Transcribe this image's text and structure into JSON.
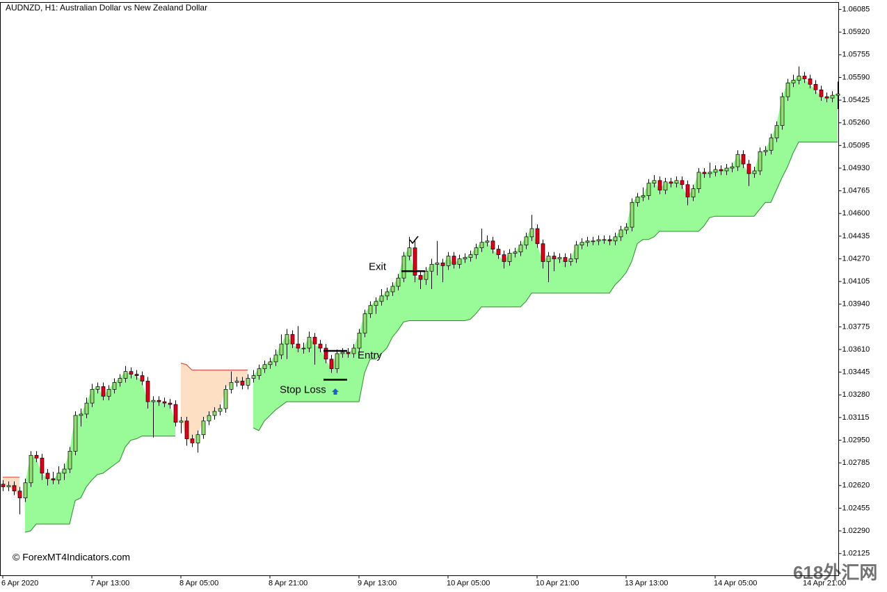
{
  "chart_data": {
    "type": "candlestick",
    "title": "AUDNZD, H1:  Australian Dollar vs New Zealand Dollar",
    "watermark": "© ForexMT4Indicators.com",
    "corner_mark": "618外汇网",
    "colors": {
      "up": "#8fe070",
      "down": "#e0001a",
      "band_up": "#98fb98",
      "band_down": "#fde0c4",
      "stop_up": "#2e8b2e",
      "stop_down": "#e03030"
    },
    "ylim": [
      1.01964,
      1.06136
    ],
    "yticks": [
      1.02125,
      {
        "value": 1.0229,
        "label": "1.02290"
      },
      1.02455,
      {
        "value": 1.0262,
        "label": "1.02620"
      },
      1.02785,
      {
        "value": 1.0295,
        "label": "1.02950"
      },
      1.03115,
      {
        "value": 1.0328,
        "label": "1.03280"
      },
      1.03445,
      {
        "value": 1.0361,
        "label": "1.03610"
      },
      1.03775,
      {
        "value": 1.0394,
        "label": "1.03940"
      },
      1.04105,
      {
        "value": 1.0427,
        "label": "1.04270"
      },
      1.04435,
      {
        "value": 1.046,
        "label": "1.04600"
      },
      1.04765,
      {
        "value": 1.0493,
        "label": "1.04930"
      },
      1.05095,
      {
        "value": 1.0526,
        "label": "1.05260"
      },
      1.05425,
      {
        "value": 1.0559,
        "label": "1.05590"
      },
      1.05755,
      {
        "value": 1.0592,
        "label": "1.05920"
      },
      1.06085
    ],
    "xticks": [
      {
        "value": 0,
        "label": "6 Apr 2020"
      },
      {
        "value": 16,
        "label": "7 Apr 13:00"
      },
      {
        "value": 32,
        "label": "8 Apr 05:00"
      },
      {
        "value": 48,
        "label": "8 Apr 21:00"
      },
      {
        "value": 64,
        "label": "9 Apr 13:00"
      },
      {
        "value": 80,
        "label": "10 Apr 05:00"
      },
      {
        "value": 96,
        "label": "10 Apr 21:00"
      },
      {
        "value": 112,
        "label": "13 Apr 13:00"
      },
      {
        "value": 128,
        "label": "14 Apr 05:00"
      },
      {
        "value": 144,
        "label": "14 Apr 21:00"
      }
    ],
    "levels": [
      {
        "label": "Exit",
        "value": 1.0418
      },
      {
        "label": "Entry",
        "value": 1.036
      },
      {
        "label": "Stop Loss",
        "value": 1.0339
      }
    ],
    "open": [
      1.0263,
      1.0261,
      1.0262,
      1.0258,
      1.0253,
      1.0264,
      1.0284,
      1.0282,
      1.0271,
      1.0267,
      1.0266,
      1.0271,
      1.0274,
      1.0287,
      1.0313,
      1.0314,
      1.0322,
      1.0332,
      1.0334,
      1.0327,
      1.0332,
      1.0337,
      1.034,
      1.0345,
      1.0343,
      1.0342,
      1.0338,
      1.0323,
      1.0324,
      1.0323,
      1.0322,
      1.0321,
      1.0308,
      1.0309,
      1.0296,
      1.0293,
      1.0299,
      1.0309,
      1.0313,
      1.0316,
      1.0318,
      1.0332,
      1.0337,
      1.0338,
      1.0335,
      1.034,
      1.0342,
      1.0347,
      1.035,
      1.0352,
      1.0357,
      1.0365,
      1.0372,
      1.0365,
      1.0362,
      1.0362,
      1.037,
      1.0365,
      1.0362,
      1.0354,
      1.0347,
      1.0358,
      1.0359,
      1.0358,
      1.0362,
      1.0373,
      1.0387,
      1.0393,
      1.0396,
      1.04,
      1.0403,
      1.0407,
      1.0413,
      1.0429,
      1.0435,
      1.0415,
      1.0412,
      1.0418,
      1.0423,
      1.0424,
      1.0422,
      1.0429,
      1.0423,
      1.0427,
      1.0428,
      1.043,
      1.0435,
      1.0439,
      1.044,
      1.0434,
      1.043,
      1.0425,
      1.0431,
      1.0432,
      1.0437,
      1.0443,
      1.0449,
      1.0438,
      1.0425,
      1.0429,
      1.0427,
      1.0428,
      1.0425,
      1.0427,
      1.0437,
      1.0439,
      1.044,
      1.044,
      1.0441,
      1.0441,
      1.044,
      1.0443,
      1.0448,
      1.045,
      1.0468,
      1.0472,
      1.0473,
      1.0482,
      1.0484,
      1.0477,
      1.0483,
      1.0482,
      1.0484,
      1.0481,
      1.0472,
      1.0478,
      1.049,
      1.0489,
      1.049,
      1.0492,
      1.0491,
      1.0493,
      1.0494,
      1.0503,
      1.0496,
      1.0489,
      1.0491,
      1.0505,
      1.0506,
      1.0515,
      1.0524,
      1.0545,
      1.0555,
      1.0557,
      1.056,
      1.0558,
      1.0554,
      1.055,
      1.0545,
      1.0544,
      1.0546
    ],
    "high": [
      1.0266,
      1.0265,
      1.0265,
      1.0261,
      1.0267,
      1.0287,
      1.0287,
      1.0285,
      1.0274,
      1.0272,
      1.0276,
      1.0278,
      1.029,
      1.0316,
      1.0318,
      1.0326,
      1.0336,
      1.0337,
      1.0337,
      1.0335,
      1.034,
      1.0343,
      1.0349,
      1.0348,
      1.0346,
      1.0345,
      1.0341,
      1.0327,
      1.0327,
      1.0326,
      1.0325,
      1.0324,
      1.0312,
      1.0312,
      1.0299,
      1.0302,
      1.0312,
      1.0316,
      1.0319,
      1.0321,
      1.0335,
      1.0345,
      1.0341,
      1.0341,
      1.0343,
      1.0346,
      1.035,
      1.0353,
      1.0355,
      1.0361,
      1.0372,
      1.0376,
      1.0375,
      1.0378,
      1.0366,
      1.0374,
      1.0373,
      1.0368,
      1.0365,
      1.0357,
      1.0361,
      1.0362,
      1.0362,
      1.0365,
      1.0376,
      1.039,
      1.0396,
      1.0399,
      1.0405,
      1.0406,
      1.041,
      1.0416,
      1.0432,
      1.0443,
      1.044,
      1.0418,
      1.0421,
      1.0427,
      1.044,
      1.0427,
      1.0432,
      1.0432,
      1.043,
      1.0431,
      1.0433,
      1.0438,
      1.0449,
      1.0444,
      1.0443,
      1.0437,
      1.0433,
      1.0434,
      1.0435,
      1.044,
      1.0446,
      1.0459,
      1.0452,
      1.0441,
      1.0432,
      1.0432,
      1.0431,
      1.0431,
      1.0431,
      1.044,
      1.0442,
      1.0443,
      1.0443,
      1.0444,
      1.0444,
      1.0444,
      1.0446,
      1.0451,
      1.0453,
      1.0471,
      1.0475,
      1.0479,
      1.0485,
      1.0488,
      1.0487,
      1.0486,
      1.0486,
      1.0487,
      1.0487,
      1.0484,
      1.0481,
      1.0493,
      1.0493,
      1.0497,
      1.0495,
      1.0495,
      1.0496,
      1.0497,
      1.0506,
      1.0506,
      1.0499,
      1.0494,
      1.0508,
      1.0509,
      1.0518,
      1.0527,
      1.0548,
      1.0558,
      1.0561,
      1.0567,
      1.0563,
      1.0561,
      1.0557,
      1.0553,
      1.0548,
      1.0549,
      1.0556
    ],
    "low": [
      1.0258,
      1.0258,
      1.0255,
      1.0241,
      1.025,
      1.0261,
      1.0279,
      1.0266,
      1.0262,
      1.0263,
      1.0263,
      1.0266,
      1.0271,
      1.0284,
      1.0305,
      1.0311,
      1.0319,
      1.0329,
      1.0324,
      1.0324,
      1.0329,
      1.0334,
      1.0337,
      1.034,
      1.0339,
      1.0335,
      1.0318,
      1.0297,
      1.032,
      1.0319,
      1.0318,
      1.0305,
      1.03,
      1.0291,
      1.029,
      1.0286,
      1.0296,
      1.0306,
      1.031,
      1.0313,
      1.0315,
      1.0329,
      1.0334,
      1.0332,
      1.0332,
      1.0337,
      1.0339,
      1.0344,
      1.0347,
      1.0349,
      1.0354,
      1.0354,
      1.0362,
      1.0359,
      1.0358,
      1.0359,
      1.035,
      1.0359,
      1.0351,
      1.0344,
      1.0344,
      1.0355,
      1.0355,
      1.0355,
      1.0359,
      1.037,
      1.0384,
      1.0387,
      1.0393,
      1.0397,
      1.04,
      1.0404,
      1.041,
      1.0426,
      1.041,
      1.0405,
      1.0408,
      1.0405,
      1.0415,
      1.041,
      1.0419,
      1.042,
      1.042,
      1.0424,
      1.0425,
      1.0427,
      1.0432,
      1.0436,
      1.0431,
      1.0427,
      1.042,
      1.0422,
      1.0428,
      1.0429,
      1.0434,
      1.044,
      1.0435,
      1.042,
      1.041,
      1.0418,
      1.0424,
      1.0421,
      1.0422,
      1.0424,
      1.0434,
      1.0436,
      1.0437,
      1.0437,
      1.0438,
      1.0437,
      1.0437,
      1.044,
      1.0445,
      1.0447,
      1.0465,
      1.0469,
      1.047,
      1.0479,
      1.0474,
      1.0474,
      1.0479,
      1.0479,
      1.0478,
      1.0466,
      1.0469,
      1.0475,
      1.0486,
      1.0486,
      1.0487,
      1.0488,
      1.0488,
      1.049,
      1.0491,
      1.0493,
      1.048,
      1.0486,
      1.0488,
      1.0502,
      1.0503,
      1.0512,
      1.0521,
      1.0542,
      1.0552,
      1.0554,
      1.0555,
      1.0551,
      1.0547,
      1.0542,
      1.0541,
      1.0541,
      1.0536
    ],
    "close": [
      1.0261,
      1.0262,
      1.0258,
      1.0253,
      1.0264,
      1.0284,
      1.0282,
      1.0271,
      1.0267,
      1.0266,
      1.0271,
      1.0274,
      1.0287,
      1.0313,
      1.0314,
      1.0322,
      1.0332,
      1.0334,
      1.0327,
      1.0332,
      1.0337,
      1.034,
      1.0345,
      1.0343,
      1.0342,
      1.0338,
      1.0323,
      1.0324,
      1.0323,
      1.0322,
      1.0321,
      1.0308,
      1.0309,
      1.0296,
      1.0293,
      1.0299,
      1.0309,
      1.0313,
      1.0316,
      1.0318,
      1.0332,
      1.0337,
      1.0338,
      1.0335,
      1.034,
      1.0342,
      1.0347,
      1.035,
      1.0352,
      1.0357,
      1.0365,
      1.0372,
      1.0365,
      1.0362,
      1.0362,
      1.037,
      1.0365,
      1.0362,
      1.0354,
      1.0347,
      1.0358,
      1.0359,
      1.0358,
      1.0362,
      1.0373,
      1.0387,
      1.0393,
      1.0396,
      1.04,
      1.0403,
      1.0407,
      1.0413,
      1.0429,
      1.0435,
      1.0415,
      1.0412,
      1.0418,
      1.0423,
      1.0424,
      1.0422,
      1.0429,
      1.0423,
      1.0427,
      1.0428,
      1.043,
      1.0435,
      1.0439,
      1.044,
      1.0434,
      1.043,
      1.0425,
      1.0431,
      1.0432,
      1.0437,
      1.0443,
      1.0449,
      1.0438,
      1.0425,
      1.0429,
      1.0427,
      1.0428,
      1.0425,
      1.0427,
      1.0437,
      1.0439,
      1.044,
      1.044,
      1.0441,
      1.0441,
      1.044,
      1.0443,
      1.0448,
      1.045,
      1.0468,
      1.0472,
      1.0473,
      1.0482,
      1.0484,
      1.0477,
      1.0483,
      1.0482,
      1.0484,
      1.0481,
      1.0472,
      1.0478,
      1.049,
      1.0489,
      1.049,
      1.0492,
      1.0491,
      1.0493,
      1.0494,
      1.0503,
      1.0496,
      1.0489,
      1.0491,
      1.0505,
      1.0506,
      1.0515,
      1.0524,
      1.0545,
      1.0555,
      1.0557,
      1.056,
      1.0558,
      1.0554,
      1.055,
      1.0545,
      1.0544,
      1.0546,
      1.0547
    ],
    "stop": [
      1.0268,
      1.0268,
      1.0268,
      1.0268,
      1.0228,
      1.0229,
      1.0234,
      1.0234,
      1.0234,
      1.0234,
      1.0234,
      1.0234,
      1.0234,
      1.0251,
      1.0253,
      1.0261,
      1.0266,
      1.027,
      1.0271,
      1.0274,
      1.0277,
      1.028,
      1.029,
      1.0295,
      1.0296,
      1.0298,
      1.0298,
      1.0298,
      1.0298,
      1.0298,
      1.0298,
      1.0298,
      1.0351,
      1.035,
      1.0346,
      1.0346,
      1.0346,
      1.0346,
      1.0346,
      1.0346,
      1.0346,
      1.0346,
      1.0346,
      1.0346,
      1.0346,
      1.0304,
      1.0302,
      1.0309,
      1.0313,
      1.0317,
      1.032,
      1.0323,
      1.0323,
      1.0323,
      1.0323,
      1.0323,
      1.0323,
      1.0323,
      1.0323,
      1.0323,
      1.0323,
      1.0323,
      1.0323,
      1.0323,
      1.0323,
      1.0344,
      1.0354,
      1.0354,
      1.0358,
      1.0362,
      1.037,
      1.0375,
      1.0381,
      1.0382,
      1.0382,
      1.0382,
      1.0382,
      1.0382,
      1.0382,
      1.0382,
      1.0382,
      1.0382,
      1.0382,
      1.0382,
      1.0383,
      1.0387,
      1.0392,
      1.0392,
      1.0392,
      1.0392,
      1.0392,
      1.0392,
      1.0392,
      1.0392,
      1.0396,
      1.0402,
      1.0402,
      1.0402,
      1.0402,
      1.0402,
      1.0402,
      1.0402,
      1.0402,
      1.0402,
      1.0402,
      1.0402,
      1.0402,
      1.0402,
      1.0402,
      1.0402,
      1.0408,
      1.0412,
      1.0417,
      1.0425,
      1.0438,
      1.0441,
      1.0441,
      1.0443,
      1.0447,
      1.0447,
      1.0447,
      1.0447,
      1.0447,
      1.0447,
      1.0447,
      1.0447,
      1.0451,
      1.0457,
      1.0458,
      1.0458,
      1.0458,
      1.0458,
      1.0458,
      1.0458,
      1.0458,
      1.0458,
      1.0463,
      1.0468,
      1.0468,
      1.0477,
      1.0486,
      1.0494,
      1.0504,
      1.0512,
      1.0512,
      1.0512,
      1.0512,
      1.0512,
      1.0512,
      1.0512,
      1.0512,
      1.0512
    ]
  }
}
